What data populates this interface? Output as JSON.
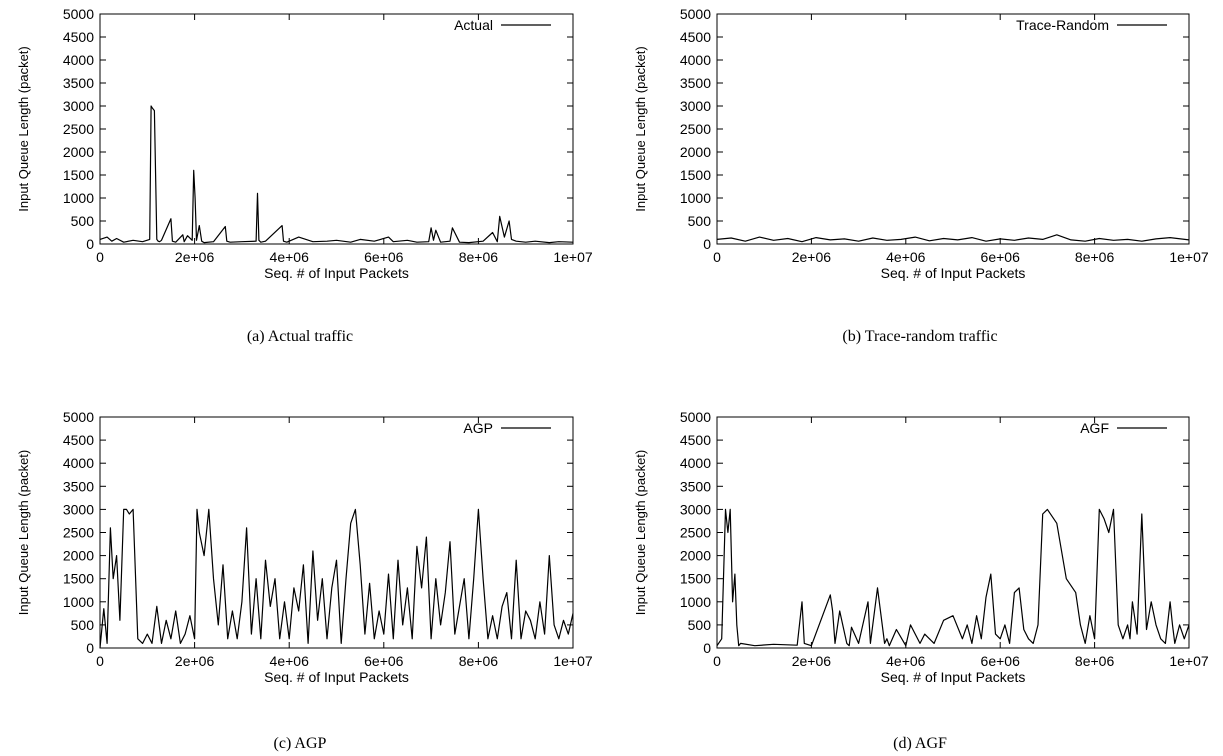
{
  "chart_data": [
    {
      "type": "line",
      "caption": "(a) Actual traffic",
      "xlabel": "Seq. # of Input Packets",
      "ylabel": "Input Queue Length (packet)",
      "xlim": [
        0,
        10000000
      ],
      "ylim": [
        0,
        5000
      ],
      "xticks": [
        "0",
        "2e+06",
        "4e+06",
        "6e+06",
        "8e+06",
        "1e+07"
      ],
      "yticks": [
        "0",
        "500",
        "1000",
        "1500",
        "2000",
        "2500",
        "3000",
        "3500",
        "4000",
        "4500",
        "5000"
      ],
      "legend_position": "top-right",
      "series": [
        {
          "name": "Actual",
          "x": [
            0,
            150000,
            250000,
            350000,
            500000,
            700000,
            900000,
            1050000,
            1080000,
            1110000,
            1150000,
            1200000,
            1230000,
            1260000,
            1300000,
            1500000,
            1530000,
            1600000,
            1750000,
            1780000,
            1850000,
            1950000,
            1980000,
            2010000,
            2040000,
            2100000,
            2150000,
            2200000,
            2400000,
            2650000,
            2680000,
            2750000,
            3000000,
            3300000,
            3330000,
            3360000,
            3400000,
            3500000,
            3850000,
            3880000,
            3950000,
            4200000,
            4500000,
            4800000,
            5000000,
            5300000,
            5500000,
            5800000,
            6100000,
            6200000,
            6500000,
            6700000,
            6950000,
            7000000,
            7050000,
            7100000,
            7200000,
            7400000,
            7450000,
            7600000,
            7800000,
            8100000,
            8300000,
            8400000,
            8450000,
            8550000,
            8650000,
            8700000,
            8800000,
            9000000,
            9200000,
            9500000,
            9700000,
            10000000
          ],
          "y": [
            100,
            150,
            60,
            120,
            40,
            80,
            50,
            100,
            3000,
            2950,
            2900,
            100,
            60,
            50,
            80,
            550,
            60,
            40,
            200,
            50,
            180,
            80,
            1600,
            1000,
            80,
            400,
            60,
            30,
            50,
            380,
            60,
            40,
            50,
            60,
            1100,
            80,
            40,
            60,
            400,
            60,
            40,
            150,
            50,
            60,
            80,
            40,
            100,
            60,
            150,
            50,
            80,
            40,
            50,
            350,
            80,
            300,
            40,
            60,
            350,
            40,
            30,
            60,
            250,
            50,
            600,
            150,
            500,
            100,
            60,
            40,
            60,
            30,
            50,
            40
          ]
        }
      ]
    },
    {
      "type": "line",
      "caption": "(b) Trace-random traffic",
      "xlabel": "Seq. # of Input Packets",
      "ylabel": "Input Queue Length (packet)",
      "xlim": [
        0,
        10000000
      ],
      "ylim": [
        0,
        5000
      ],
      "xticks": [
        "0",
        "2e+06",
        "4e+06",
        "6e+06",
        "8e+06",
        "1e+07"
      ],
      "yticks": [
        "0",
        "500",
        "1000",
        "1500",
        "2000",
        "2500",
        "3000",
        "3500",
        "4000",
        "4500",
        "5000"
      ],
      "legend_position": "top-right",
      "series": [
        {
          "name": "Trace-Random",
          "x": [
            0,
            300000,
            600000,
            900000,
            1200000,
            1500000,
            1800000,
            2100000,
            2400000,
            2700000,
            3000000,
            3300000,
            3600000,
            3900000,
            4200000,
            4500000,
            4800000,
            5100000,
            5400000,
            5700000,
            6000000,
            6300000,
            6600000,
            6900000,
            7200000,
            7500000,
            7800000,
            8100000,
            8400000,
            8700000,
            9000000,
            9300000,
            9600000,
            10000000
          ],
          "y": [
            100,
            130,
            60,
            150,
            80,
            120,
            50,
            140,
            90,
            110,
            60,
            130,
            80,
            100,
            150,
            70,
            120,
            90,
            140,
            60,
            110,
            80,
            130,
            100,
            200,
            90,
            60,
            120,
            80,
            100,
            60,
            110,
            140,
            90
          ]
        }
      ]
    },
    {
      "type": "line",
      "caption": "(c) AGP",
      "xlabel": "Seq. # of Input Packets",
      "ylabel": "Input Queue Length (packet)",
      "xlim": [
        0,
        10000000
      ],
      "ylim": [
        0,
        5000
      ],
      "xticks": [
        "0",
        "2e+06",
        "4e+06",
        "6e+06",
        "8e+06",
        "1e+07"
      ],
      "yticks": [
        "0",
        "500",
        "1000",
        "1500",
        "2000",
        "2500",
        "3000",
        "3500",
        "4000",
        "4500",
        "5000"
      ],
      "legend_position": "top-right",
      "series": [
        {
          "name": "AGP",
          "x": [
            0,
            80000,
            150000,
            220000,
            280000,
            350000,
            420000,
            500000,
            560000,
            620000,
            700000,
            800000,
            900000,
            1000000,
            1100000,
            1200000,
            1300000,
            1400000,
            1500000,
            1600000,
            1700000,
            1800000,
            1900000,
            2000000,
            2050000,
            2100000,
            2200000,
            2300000,
            2400000,
            2500000,
            2600000,
            2700000,
            2800000,
            2900000,
            3000000,
            3100000,
            3200000,
            3300000,
            3400000,
            3500000,
            3600000,
            3700000,
            3800000,
            3900000,
            4000000,
            4100000,
            4200000,
            4300000,
            4400000,
            4500000,
            4600000,
            4700000,
            4800000,
            4900000,
            5000000,
            5100000,
            5200000,
            5300000,
            5400000,
            5500000,
            5600000,
            5700000,
            5800000,
            5900000,
            6000000,
            6100000,
            6200000,
            6300000,
            6400000,
            6500000,
            6600000,
            6700000,
            6800000,
            6900000,
            7000000,
            7100000,
            7200000,
            7300000,
            7400000,
            7500000,
            7600000,
            7700000,
            7800000,
            7900000,
            8000000,
            8100000,
            8200000,
            8300000,
            8400000,
            8500000,
            8600000,
            8700000,
            8800000,
            8900000,
            9000000,
            9100000,
            9200000,
            9300000,
            9400000,
            9500000,
            9600000,
            9700000,
            9800000,
            9900000,
            10000000
          ],
          "y": [
            0,
            850,
            100,
            2600,
            1500,
            2000,
            600,
            3000,
            3000,
            2900,
            3000,
            200,
            100,
            300,
            100,
            900,
            100,
            600,
            200,
            800,
            100,
            300,
            700,
            200,
            3000,
            2500,
            2000,
            3000,
            1500,
            500,
            1800,
            200,
            800,
            200,
            1000,
            2600,
            300,
            1500,
            200,
            1900,
            900,
            1500,
            200,
            1000,
            200,
            1300,
            800,
            1800,
            100,
            2100,
            600,
            1500,
            200,
            1300,
            1900,
            100,
            1500,
            2700,
            3000,
            1800,
            300,
            1400,
            200,
            800,
            300,
            1600,
            200,
            1900,
            500,
            1300,
            200,
            2200,
            1300,
            2400,
            200,
            1500,
            500,
            1200,
            2300,
            300,
            900,
            1500,
            200,
            1500,
            3000,
            1500,
            200,
            700,
            200,
            900,
            1200,
            200,
            1900,
            200,
            800,
            600,
            200,
            1000,
            300,
            2000,
            500,
            200,
            600,
            300,
            750
          ]
        }
      ]
    },
    {
      "type": "line",
      "caption": "(d) AGF",
      "xlabel": "Seq. # of Input Packets",
      "ylabel": "Input Queue Length (packet)",
      "xlim": [
        0,
        10000000
      ],
      "ylim": [
        0,
        5000
      ],
      "xticks": [
        "0",
        "2e+06",
        "4e+06",
        "6e+06",
        "8e+06",
        "1e+07"
      ],
      "yticks": [
        "0",
        "500",
        "1000",
        "1500",
        "2000",
        "2500",
        "3000",
        "3500",
        "4000",
        "4500",
        "5000"
      ],
      "legend_position": "top-right",
      "series": [
        {
          "name": "AGF",
          "x": [
            0,
            100000,
            180000,
            230000,
            280000,
            330000,
            380000,
            420000,
            460000,
            500000,
            800000,
            1200000,
            1700000,
            1800000,
            1850000,
            2000000,
            2400000,
            2450000,
            2500000,
            2600000,
            2750000,
            2800000,
            2850000,
            3000000,
            3200000,
            3250000,
            3400000,
            3550000,
            3600000,
            3650000,
            3800000,
            4000000,
            4100000,
            4300000,
            4400000,
            4600000,
            4800000,
            5000000,
            5200000,
            5300000,
            5400000,
            5500000,
            5600000,
            5700000,
            5800000,
            5900000,
            6000000,
            6100000,
            6200000,
            6300000,
            6400000,
            6500000,
            6600000,
            6700000,
            6800000,
            6900000,
            7000000,
            7200000,
            7400000,
            7600000,
            7700000,
            7750000,
            7800000,
            7900000,
            8000000,
            8100000,
            8200000,
            8300000,
            8400000,
            8500000,
            8600000,
            8700000,
            8750000,
            8800000,
            8900000,
            9000000,
            9100000,
            9200000,
            9300000,
            9400000,
            9500000,
            9600000,
            9650000,
            9700000,
            9800000,
            9900000,
            10000000
          ],
          "y": [
            50,
            200,
            3000,
            2500,
            3000,
            1000,
            1600,
            500,
            50,
            100,
            50,
            80,
            60,
            1000,
            100,
            50,
            1150,
            800,
            100,
            800,
            100,
            50,
            450,
            100,
            1000,
            100,
            1300,
            100,
            200,
            50,
            400,
            50,
            500,
            100,
            300,
            100,
            600,
            700,
            200,
            500,
            100,
            700,
            200,
            1100,
            1600,
            300,
            200,
            500,
            100,
            1200,
            1300,
            400,
            200,
            100,
            500,
            2900,
            3000,
            2700,
            1500,
            1200,
            500,
            300,
            100,
            700,
            200,
            3000,
            2800,
            2500,
            3000,
            500,
            200,
            500,
            200,
            1000,
            300,
            2900,
            400,
            1000,
            500,
            200,
            100,
            1000,
            500,
            100,
            500,
            200,
            500
          ]
        }
      ]
    }
  ]
}
